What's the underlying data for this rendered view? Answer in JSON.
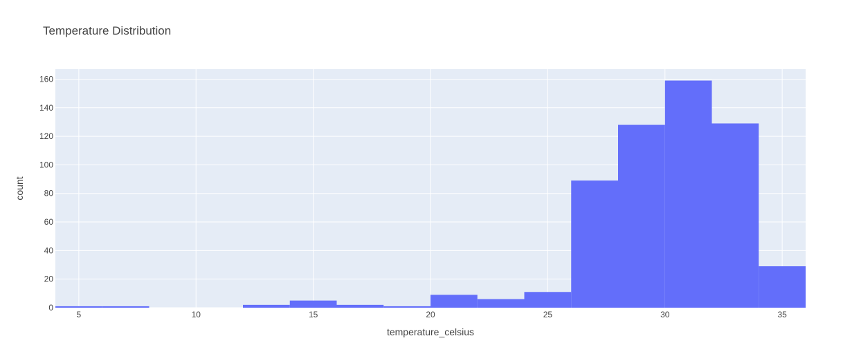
{
  "chart_data": {
    "type": "bar",
    "title": "Temperature Distribution",
    "xlabel": "temperature_celsius",
    "ylabel": "count",
    "xlim": [
      4,
      36
    ],
    "ylim": [
      0,
      167
    ],
    "xticks": [
      5,
      10,
      15,
      20,
      25,
      30,
      35
    ],
    "yticks": [
      0,
      20,
      40,
      60,
      80,
      100,
      120,
      140,
      160
    ],
    "grid": true,
    "legend": false,
    "bar_color": "#636efa",
    "plot_bg": "#e5ecf6",
    "bins": [
      {
        "x0": 4,
        "x1": 6,
        "count": 1
      },
      {
        "x0": 6,
        "x1": 8,
        "count": 1
      },
      {
        "x0": 8,
        "x1": 10,
        "count": 0
      },
      {
        "x0": 10,
        "x1": 12,
        "count": 0
      },
      {
        "x0": 12,
        "x1": 14,
        "count": 2
      },
      {
        "x0": 14,
        "x1": 16,
        "count": 5
      },
      {
        "x0": 16,
        "x1": 18,
        "count": 2
      },
      {
        "x0": 18,
        "x1": 20,
        "count": 1
      },
      {
        "x0": 20,
        "x1": 22,
        "count": 9
      },
      {
        "x0": 22,
        "x1": 24,
        "count": 6
      },
      {
        "x0": 24,
        "x1": 26,
        "count": 11
      },
      {
        "x0": 26,
        "x1": 28,
        "count": 89
      },
      {
        "x0": 28,
        "x1": 30,
        "count": 128
      },
      {
        "x0": 30,
        "x1": 32,
        "count": 159
      },
      {
        "x0": 32,
        "x1": 34,
        "count": 129
      },
      {
        "x0": 34,
        "x1": 36,
        "count": 29
      }
    ]
  }
}
